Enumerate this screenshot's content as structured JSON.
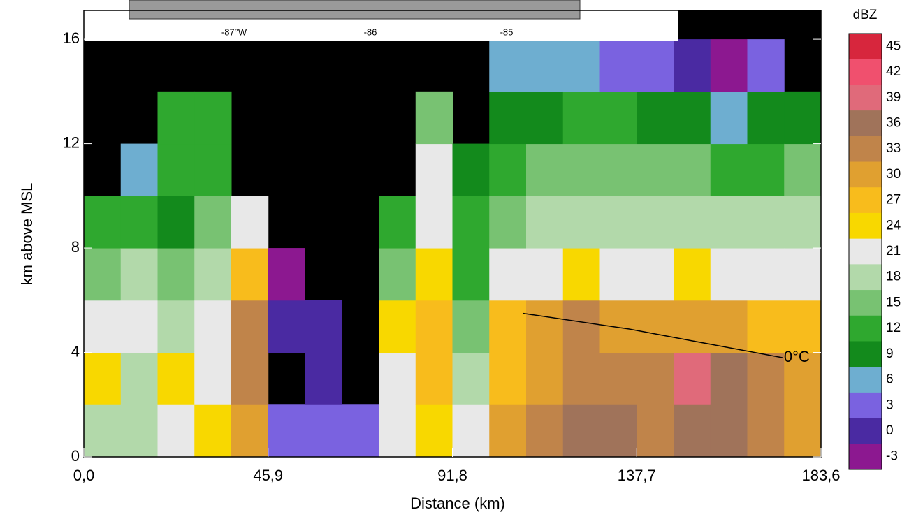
{
  "chart_data": {
    "type": "heatmap",
    "xlabel": "Distance (km)",
    "ylabel": "km above MSL",
    "xlim": [
      0,
      183.6
    ],
    "ylim": [
      0,
      17.1
    ],
    "xticks": [
      {
        "value": 0,
        "label": "0,0"
      },
      {
        "value": 45.9,
        "label": "45,9"
      },
      {
        "value": 91.8,
        "label": "91,8"
      },
      {
        "value": 137.7,
        "label": "137,7"
      },
      {
        "value": 183.6,
        "label": "183,6"
      }
    ],
    "yticks": [
      0,
      4,
      8,
      12,
      16
    ],
    "xbins": [
      0,
      9.18,
      18.36,
      27.54,
      36.72,
      45.9,
      55.08,
      64.26,
      73.44,
      82.62,
      91.8,
      100.98,
      110.16,
      119.34,
      128.52,
      137.7,
      146.88,
      156.06,
      165.24,
      174.42,
      183.6
    ],
    "ybins": [
      0,
      2,
      4,
      6,
      8,
      10,
      12,
      14,
      16
    ],
    "z": [
      [
        18,
        24,
        21,
        15,
        12,
        null,
        null,
        null
      ],
      [
        18,
        18,
        21,
        18,
        12,
        6,
        null,
        null
      ],
      [
        21,
        24,
        18,
        15,
        9,
        12,
        12,
        null
      ],
      [
        24,
        21,
        21,
        18,
        15,
        12,
        12,
        null
      ],
      [
        30,
        33,
        33,
        27,
        21,
        null,
        null,
        null
      ],
      [
        3,
        null,
        0,
        -3,
        null,
        null,
        null,
        null
      ],
      [
        3,
        0,
        0,
        null,
        null,
        null,
        null,
        null
      ],
      [
        3,
        null,
        null,
        null,
        null,
        null,
        null,
        null
      ],
      [
        21,
        21,
        24,
        15,
        12,
        null,
        null,
        null
      ],
      [
        24,
        27,
        27,
        24,
        21,
        21,
        15,
        null
      ],
      [
        21,
        18,
        15,
        12,
        12,
        9,
        null,
        null
      ],
      [
        30,
        27,
        27,
        21,
        15,
        12,
        9,
        6
      ],
      [
        33,
        30,
        30,
        21,
        18,
        15,
        9,
        6
      ],
      [
        36,
        33,
        33,
        24,
        18,
        15,
        12,
        6
      ],
      [
        36,
        33,
        30,
        21,
        18,
        15,
        12,
        3
      ],
      [
        33,
        33,
        30,
        21,
        18,
        15,
        9,
        3
      ],
      [
        36,
        39,
        30,
        24,
        18,
        15,
        9,
        0
      ],
      [
        36,
        36,
        30,
        21,
        18,
        12,
        6,
        -3
      ],
      [
        33,
        33,
        27,
        21,
        18,
        12,
        9,
        3
      ],
      [
        30,
        30,
        27,
        21,
        18,
        15,
        9,
        null
      ]
    ],
    "background": "#000000",
    "colorbar": {
      "label": "dBZ",
      "levels": [
        -3,
        0,
        3,
        6,
        9,
        12,
        15,
        18,
        21,
        24,
        27,
        30,
        33,
        36,
        39,
        42,
        45
      ],
      "colors": [
        "#8c1890",
        "#4a2aa2",
        "#7a62e0",
        "#6eaed0",
        "#138a1c",
        "#2fa82f",
        "#78c272",
        "#b2d9aa",
        "#e8e8e8",
        "#f8d800",
        "#f8bc1c",
        "#e0a030",
        "#c0844a",
        "#a0735a",
        "#e06a7a",
        "#f0506e",
        "#d7263d"
      ]
    },
    "freezing_level": {
      "label": "0°C",
      "x": [
        109.3,
        135.7,
        153.1,
        174.0
      ],
      "y": [
        5.5,
        4.9,
        4.4,
        3.8
      ]
    },
    "inset_labels": [
      "-87°W",
      "-86",
      "-85"
    ]
  }
}
